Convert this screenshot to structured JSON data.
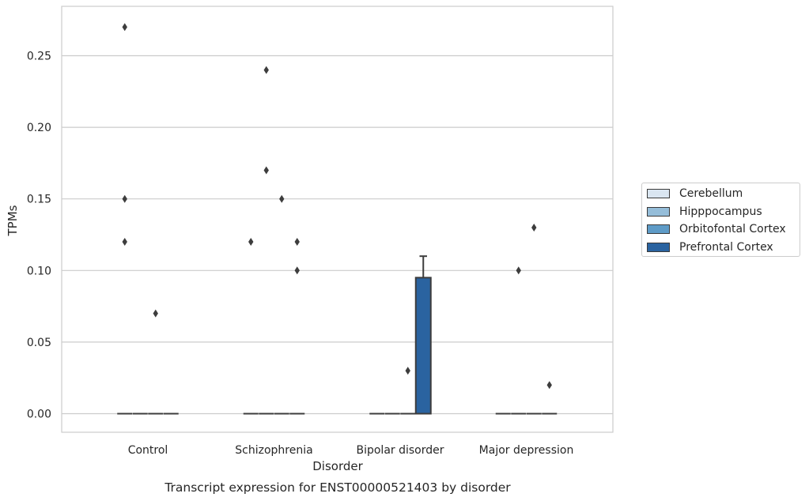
{
  "chart_data": {
    "type": "box",
    "caption": "Transcript expression for ENST00000521403 by disorder",
    "xlabel": "Disorder",
    "ylabel": "TPMs",
    "ylim": [
      -0.013,
      0.285
    ],
    "yticks": [
      "0.00",
      "0.05",
      "0.10",
      "0.15",
      "0.20",
      "0.25"
    ],
    "grid": "horizontal",
    "legend_position": "right",
    "categories": [
      "Control",
      "Schizophrenia",
      "Bipolar disorder",
      "Major depression"
    ],
    "series": [
      {
        "name": "Cerebellum",
        "color": "#dae6f1"
      },
      {
        "name": "Hipppocampus",
        "color": "#95bdd9"
      },
      {
        "name": "Orbitofontal Cortex",
        "color": "#5e9bc7"
      },
      {
        "name": "Prefrontal Cortex",
        "color": "#2a63a0"
      }
    ],
    "boxes": [
      {
        "category": 0,
        "series": 0,
        "q1": 0,
        "median": 0,
        "q3": 0,
        "whislo": 0,
        "whishi": 0,
        "fliers": [
          0.12,
          0.15,
          0.27
        ]
      },
      {
        "category": 0,
        "series": 1,
        "q1": 0,
        "median": 0,
        "q3": 0,
        "whislo": 0,
        "whishi": 0,
        "fliers": []
      },
      {
        "category": 0,
        "series": 2,
        "q1": 0,
        "median": 0,
        "q3": 0,
        "whislo": 0,
        "whishi": 0,
        "fliers": [
          0.07
        ]
      },
      {
        "category": 0,
        "series": 3,
        "q1": 0,
        "median": 0,
        "q3": 0,
        "whislo": 0,
        "whishi": 0,
        "fliers": []
      },
      {
        "category": 1,
        "series": 0,
        "q1": 0,
        "median": 0,
        "q3": 0,
        "whislo": 0,
        "whishi": 0,
        "fliers": [
          0.12
        ]
      },
      {
        "category": 1,
        "series": 1,
        "q1": 0,
        "median": 0,
        "q3": 0,
        "whislo": 0,
        "whishi": 0,
        "fliers": [
          0.17,
          0.24
        ]
      },
      {
        "category": 1,
        "series": 2,
        "q1": 0,
        "median": 0,
        "q3": 0,
        "whislo": 0,
        "whishi": 0,
        "fliers": [
          0.15
        ]
      },
      {
        "category": 1,
        "series": 3,
        "q1": 0,
        "median": 0,
        "q3": 0,
        "whislo": 0,
        "whishi": 0,
        "fliers": [
          0.1,
          0.12
        ]
      },
      {
        "category": 2,
        "series": 0,
        "q1": 0,
        "median": 0,
        "q3": 0,
        "whislo": 0,
        "whishi": 0,
        "fliers": []
      },
      {
        "category": 2,
        "series": 1,
        "q1": 0,
        "median": 0,
        "q3": 0,
        "whislo": 0,
        "whishi": 0,
        "fliers": []
      },
      {
        "category": 2,
        "series": 2,
        "q1": 0,
        "median": 0,
        "q3": 0,
        "whislo": 0,
        "whishi": 0,
        "fliers": [
          0.03
        ]
      },
      {
        "category": 2,
        "series": 3,
        "q1": 0,
        "median": 0,
        "q3": 0.095,
        "whislo": 0,
        "whishi": 0.11,
        "fliers": []
      },
      {
        "category": 3,
        "series": 0,
        "q1": 0,
        "median": 0,
        "q3": 0,
        "whislo": 0,
        "whishi": 0,
        "fliers": []
      },
      {
        "category": 3,
        "series": 1,
        "q1": 0,
        "median": 0,
        "q3": 0,
        "whislo": 0,
        "whishi": 0,
        "fliers": [
          0.1
        ]
      },
      {
        "category": 3,
        "series": 2,
        "q1": 0,
        "median": 0,
        "q3": 0,
        "whislo": 0,
        "whishi": 0,
        "fliers": [
          0.13
        ]
      },
      {
        "category": 3,
        "series": 3,
        "q1": 0,
        "median": 0,
        "q3": 0,
        "whislo": 0,
        "whishi": 0,
        "fliers": [
          0.02
        ]
      }
    ]
  }
}
